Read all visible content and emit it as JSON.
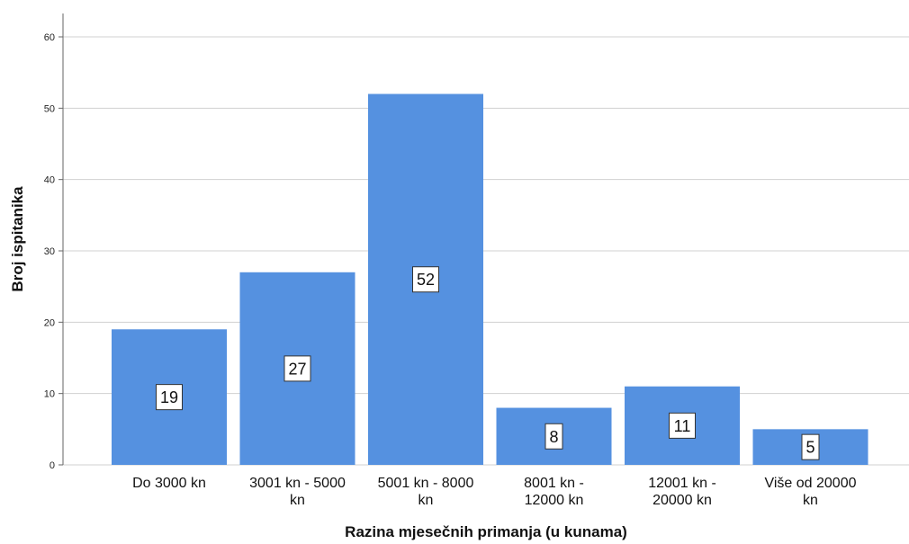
{
  "chart_data": {
    "type": "bar",
    "categories": [
      [
        "Do 3000 kn"
      ],
      [
        "3001 kn - 5000",
        "kn"
      ],
      [
        "5001 kn - 8000",
        "kn"
      ],
      [
        "8001 kn -",
        "12000 kn"
      ],
      [
        "12001 kn -",
        "20000 kn"
      ],
      [
        "Više od 20000",
        "kn"
      ]
    ],
    "values": [
      19,
      27,
      52,
      8,
      11,
      5
    ],
    "data_labels": [
      "19",
      "27",
      "52",
      "8",
      "11",
      "5"
    ],
    "xlabel": "Razina mjesečnih primanja (u kunama)",
    "ylabel": "Broj ispitanika",
    "ylim": [
      0,
      60
    ],
    "yticks": [
      0,
      10,
      20,
      30,
      40,
      50,
      60
    ],
    "grid": true,
    "colors": {
      "bar": "#5591e0",
      "grid": "#d0d0d0",
      "axis": "#666666"
    }
  }
}
